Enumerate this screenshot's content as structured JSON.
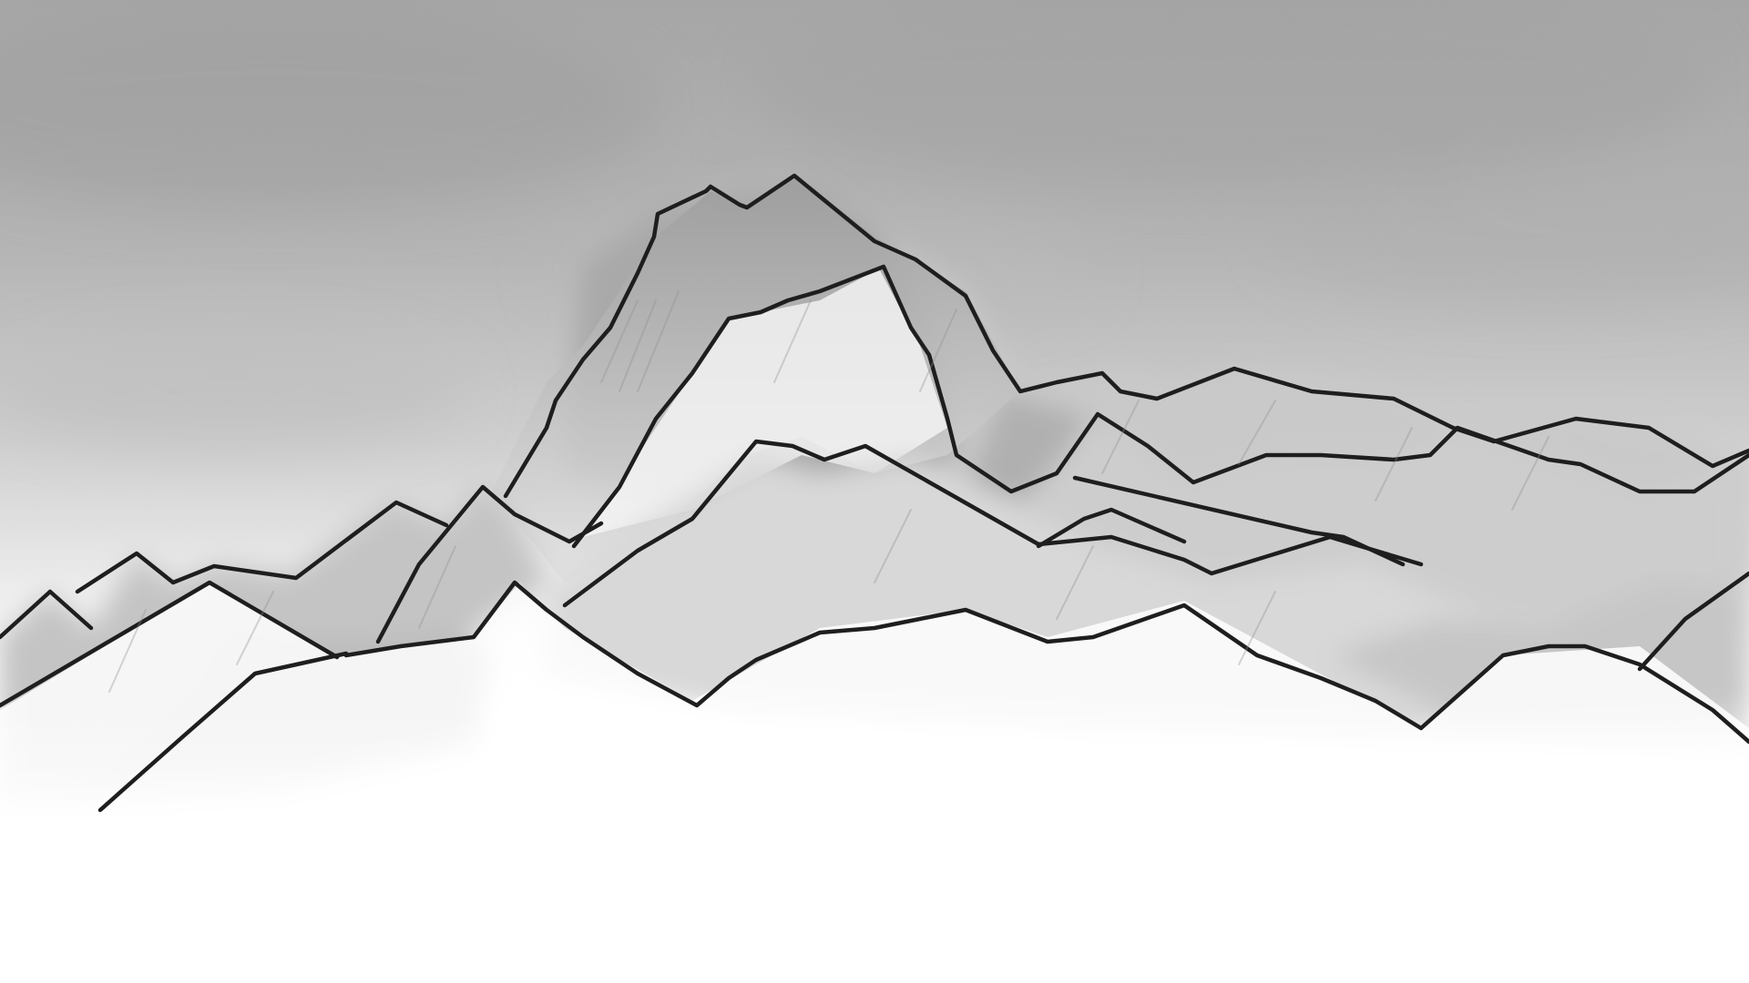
{
  "scene": {
    "subject": "mountain-range-sketch",
    "palette": {
      "sky_top": "#a9a9a9",
      "sky_mid": "#c4c4c4",
      "sky_low": "#ececec",
      "ground": "#ffffff",
      "shade_dark": "#9a9a9a",
      "shade_mid": "#bdbdbd",
      "shade_light": "#dedede",
      "ink": "#1e1e1e"
    }
  }
}
